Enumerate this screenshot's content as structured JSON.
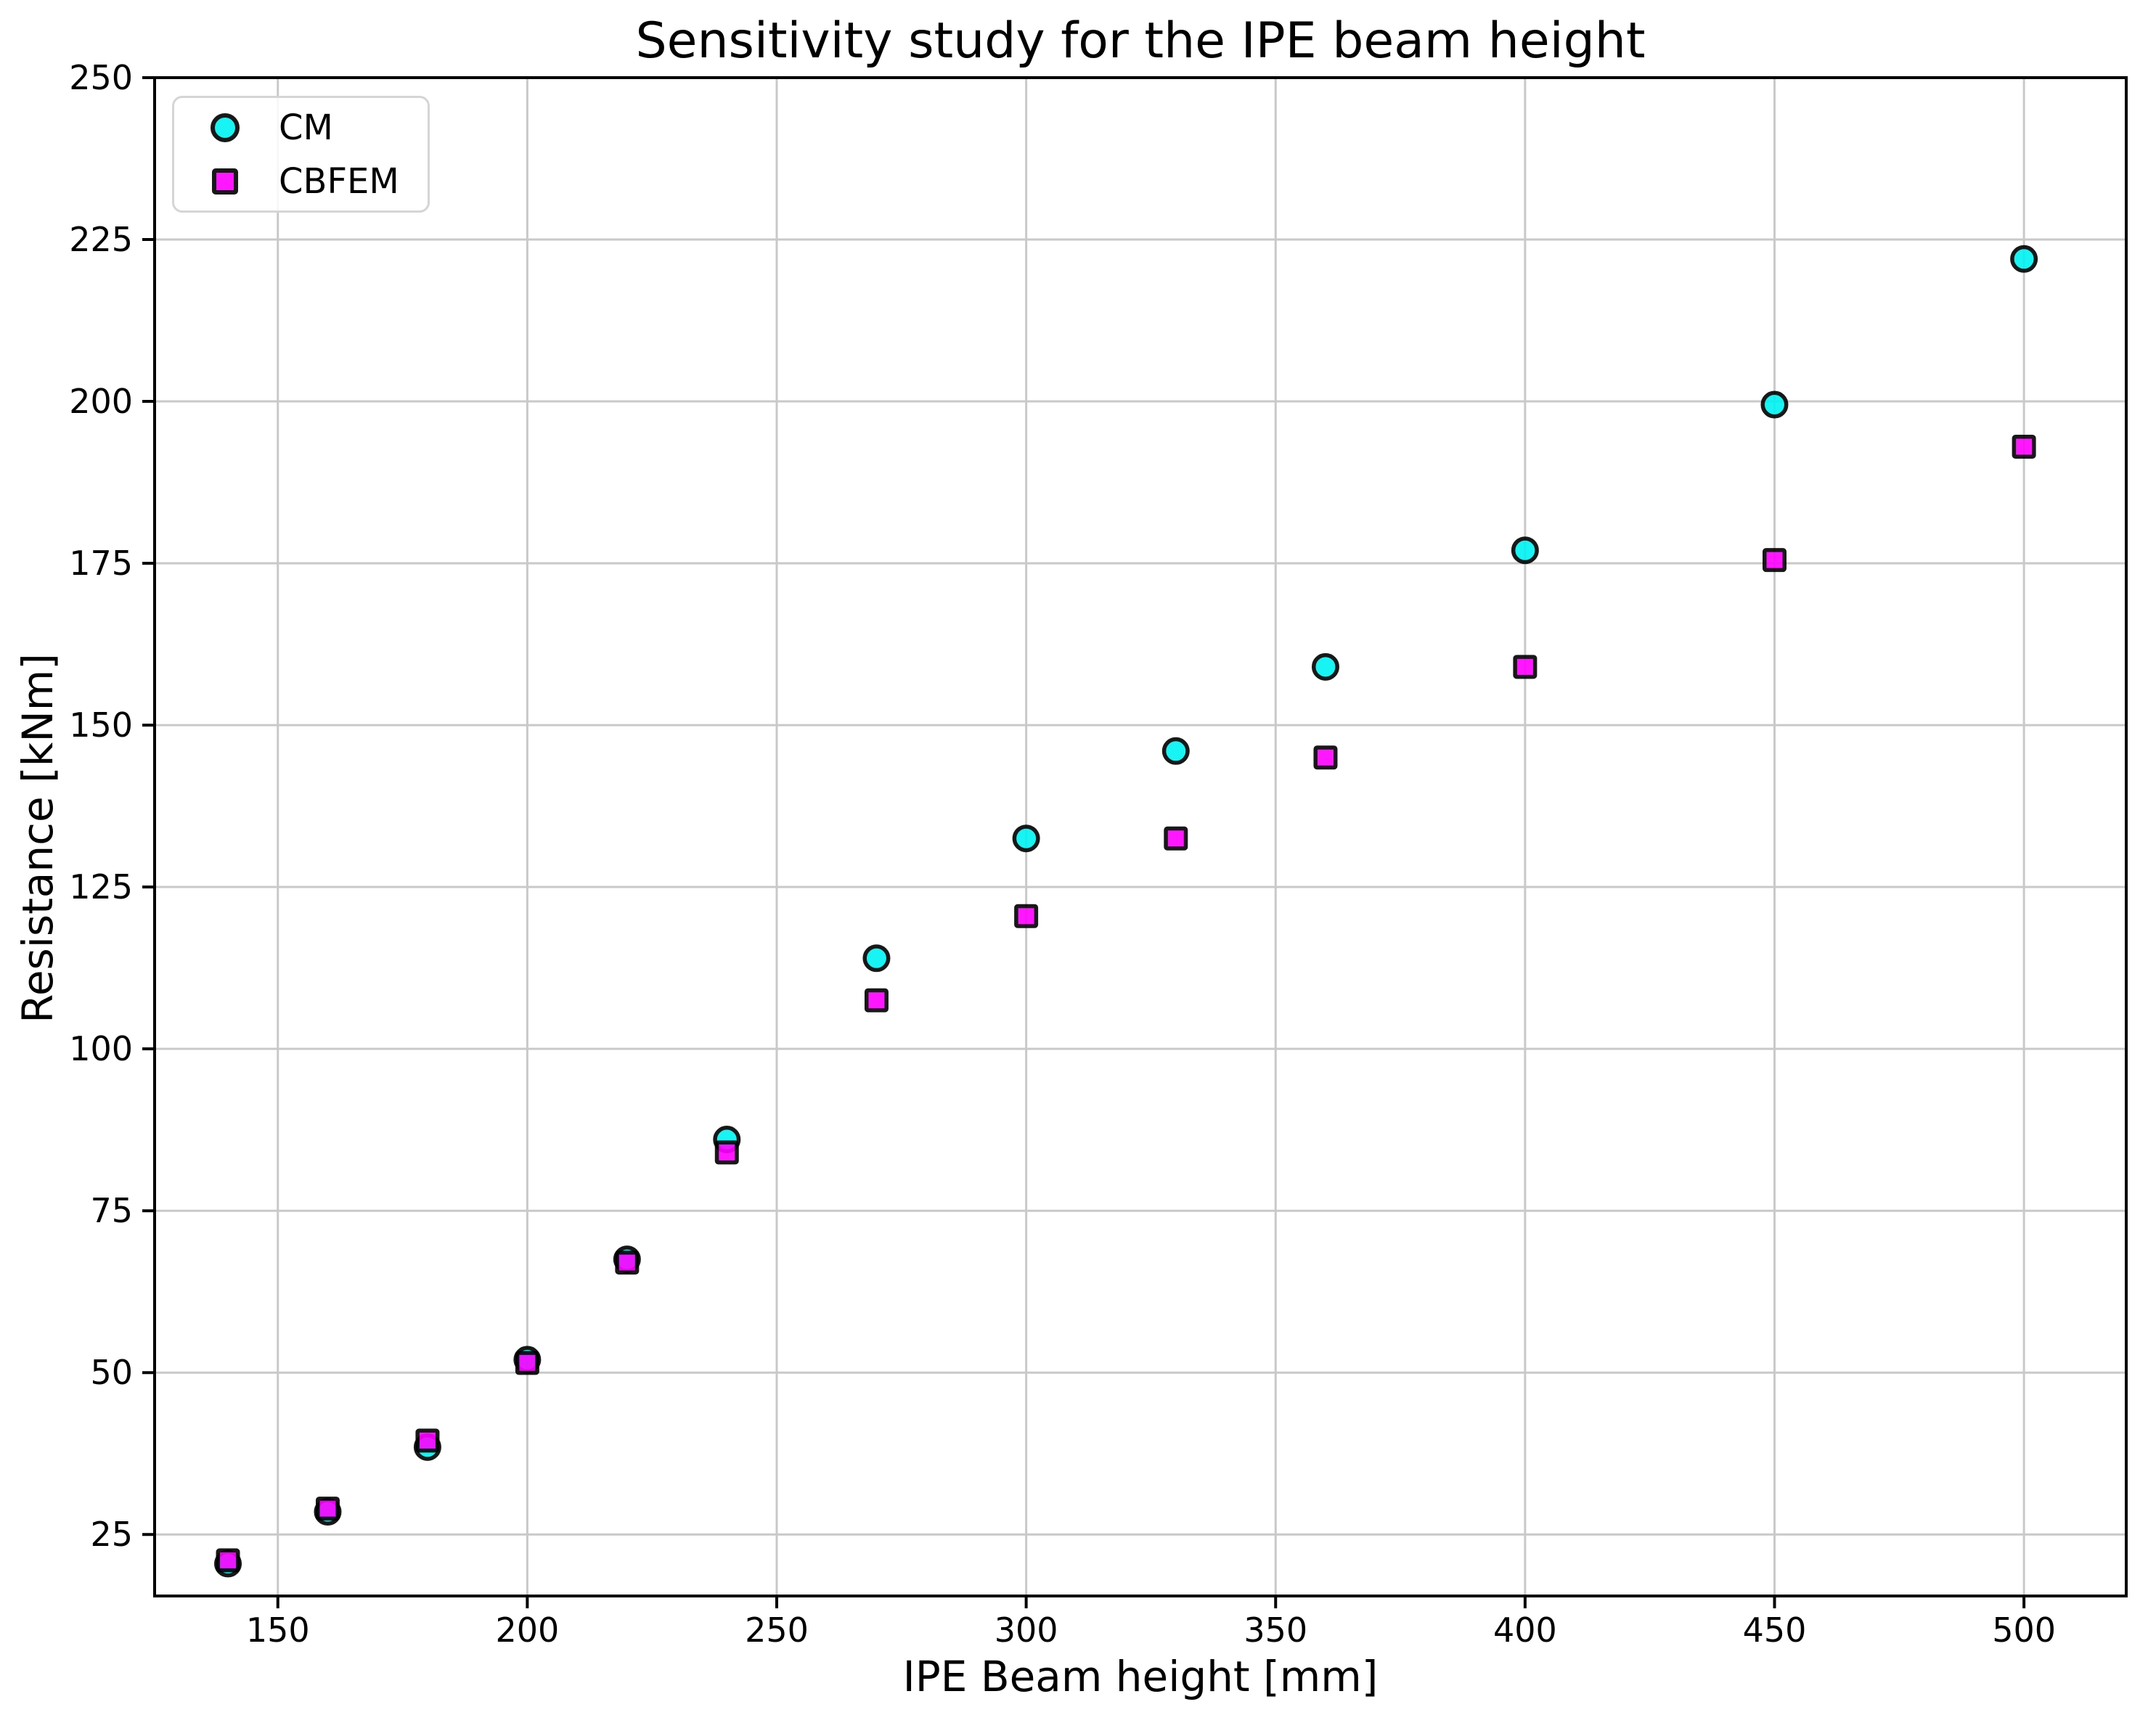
{
  "figure": {
    "title": "Sensitivity study for the IPE beam height"
  },
  "chart_data": {
    "type": "scatter",
    "title": "Sensitivity study for the IPE beam height",
    "xlabel": "IPE Beam height [mm]",
    "ylabel": "Resistance [kNm]",
    "xlim": [
      125.3,
      520.5
    ],
    "ylim": [
      15.5,
      250
    ],
    "xticks": [
      150,
      200,
      250,
      300,
      350,
      400,
      450,
      500
    ],
    "yticks": [
      25,
      50,
      75,
      100,
      125,
      150,
      175,
      200,
      225,
      250
    ],
    "grid": true,
    "grid_color": "#c9c9c9",
    "background": "#ffffff",
    "legend_position": "upper-left",
    "x": [
      140,
      160,
      180,
      200,
      220,
      240,
      270,
      300,
      330,
      360,
      400,
      450,
      500
    ],
    "series": [
      {
        "name": "CM",
        "marker": "circle",
        "color": "#00f2f2",
        "edge_color": "#000000",
        "values": [
          20.5,
          28.5,
          38.5,
          52,
          67.5,
          86,
          114,
          132.5,
          146,
          159,
          177,
          199.5,
          222
        ]
      },
      {
        "name": "CBFEM",
        "marker": "square",
        "color": "#ff00ff",
        "edge_color": "#000000",
        "values": [
          21,
          29,
          39.5,
          51.5,
          67,
          84,
          107.5,
          120.5,
          132.5,
          145,
          159,
          175.5,
          193
        ]
      }
    ]
  }
}
